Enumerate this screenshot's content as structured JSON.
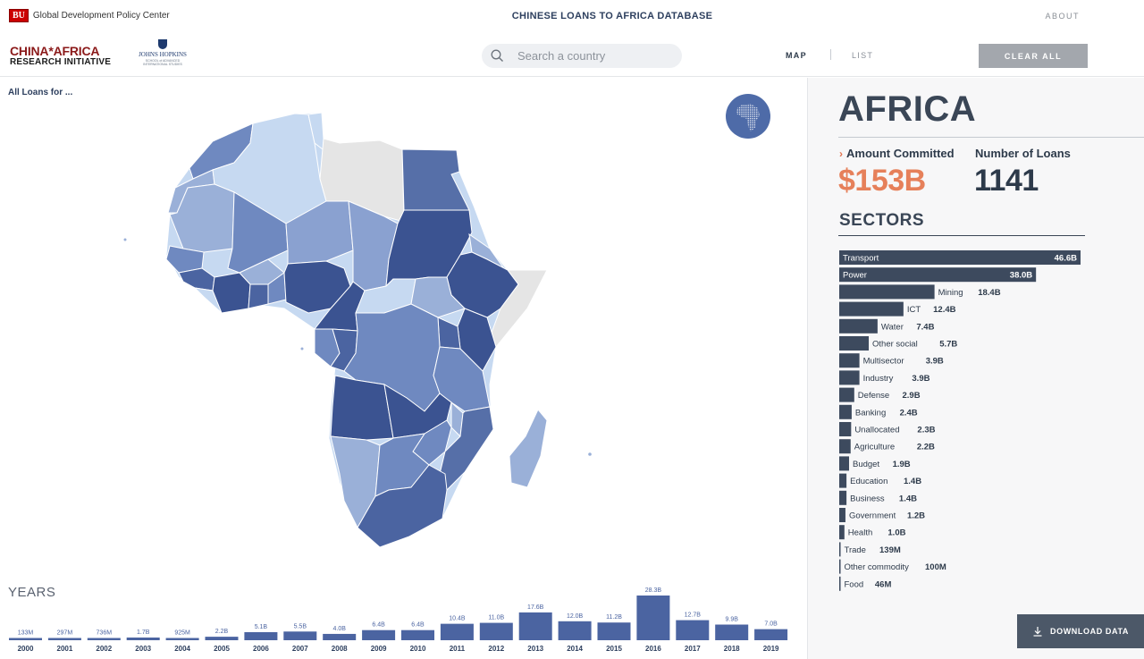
{
  "top_bar": {
    "bu_mark": "BU",
    "bu_name": "Global Development Policy Center",
    "site_title": "CHINESE LOANS TO AFRICA DATABASE",
    "about": "ABOUT"
  },
  "header": {
    "cari_line1": "CHINA*AFRICA",
    "cari_line2": "RESEARCH INITIATIVE",
    "jhu_name": "JOHNS HOPKINS",
    "jhu_sub": "SCHOOL of ADVANCED INTERNATIONAL STUDIES",
    "search_placeholder": "Search a country",
    "tab_map": "MAP",
    "tab_list": "LIST",
    "clear_all": "CLEAR ALL"
  },
  "map": {
    "filter_label": "All Loans for ...",
    "globe_icon": "africa-globe-icon",
    "colors": {
      "light": "#c6d9f1",
      "mid_light": "#9ab0d8",
      "mid": "#6f89c0",
      "dark": "#4b64a1",
      "darkest": "#3b5391",
      "none": "#e5e5e5"
    }
  },
  "years": {
    "title": "YEARS",
    "bar_color": "#4b64a1",
    "items": [
      {
        "year": "2000",
        "label": "133M",
        "value": 0.133
      },
      {
        "year": "2001",
        "label": "297M",
        "value": 0.297
      },
      {
        "year": "2002",
        "label": "736M",
        "value": 0.736
      },
      {
        "year": "2003",
        "label": "1.7B",
        "value": 1.7
      },
      {
        "year": "2004",
        "label": "925M",
        "value": 0.925
      },
      {
        "year": "2005",
        "label": "2.2B",
        "value": 2.2
      },
      {
        "year": "2006",
        "label": "5.1B",
        "value": 5.1
      },
      {
        "year": "2007",
        "label": "5.5B",
        "value": 5.5
      },
      {
        "year": "2008",
        "label": "4.0B",
        "value": 4.0
      },
      {
        "year": "2009",
        "label": "6.4B",
        "value": 6.4
      },
      {
        "year": "2010",
        "label": "6.4B",
        "value": 6.4
      },
      {
        "year": "2011",
        "label": "10.4B",
        "value": 10.4
      },
      {
        "year": "2012",
        "label": "11.0B",
        "value": 11.0
      },
      {
        "year": "2013",
        "label": "17.6B",
        "value": 17.6
      },
      {
        "year": "2014",
        "label": "12.0B",
        "value": 12.0
      },
      {
        "year": "2015",
        "label": "11.2B",
        "value": 11.2
      },
      {
        "year": "2016",
        "label": "28.3B",
        "value": 28.3
      },
      {
        "year": "2017",
        "label": "12.7B",
        "value": 12.7
      },
      {
        "year": "2018",
        "label": "9.9B",
        "value": 9.9
      },
      {
        "year": "2019",
        "label": "7.0B",
        "value": 7.0
      }
    ]
  },
  "summary": {
    "region": "AFRICA",
    "amount_label": "Amount Committed",
    "amount_value": "$153B",
    "loans_label": "Number of Loans",
    "loans_value": "1141",
    "sectors_title": "SECTORS"
  },
  "sectors": {
    "bar_color": "#3d4a5e",
    "items": [
      {
        "name": "Transport",
        "label": "46.6B",
        "value": 46.6
      },
      {
        "name": "Power",
        "label": "38.0B",
        "value": 38.0
      },
      {
        "name": "Mining",
        "label": "18.4B",
        "value": 18.4
      },
      {
        "name": "ICT",
        "label": "12.4B",
        "value": 12.4
      },
      {
        "name": "Water",
        "label": "7.4B",
        "value": 7.4
      },
      {
        "name": "Other social",
        "label": "5.7B",
        "value": 5.7
      },
      {
        "name": "Multisector",
        "label": "3.9B",
        "value": 3.9
      },
      {
        "name": "Industry",
        "label": "3.9B",
        "value": 3.9
      },
      {
        "name": "Defense",
        "label": "2.9B",
        "value": 2.9
      },
      {
        "name": "Banking",
        "label": "2.4B",
        "value": 2.4
      },
      {
        "name": "Unallocated",
        "label": "2.3B",
        "value": 2.3
      },
      {
        "name": "Agriculture",
        "label": "2.2B",
        "value": 2.2
      },
      {
        "name": "Budget",
        "label": "1.9B",
        "value": 1.9
      },
      {
        "name": "Education",
        "label": "1.4B",
        "value": 1.4
      },
      {
        "name": "Business",
        "label": "1.4B",
        "value": 1.4
      },
      {
        "name": "Government",
        "label": "1.2B",
        "value": 1.2
      },
      {
        "name": "Health",
        "label": "1.0B",
        "value": 1.0
      },
      {
        "name": "Trade",
        "label": "139M",
        "value": 0.139
      },
      {
        "name": "Other commodity",
        "label": "100M",
        "value": 0.1
      },
      {
        "name": "Food",
        "label": "46M",
        "value": 0.046
      }
    ]
  },
  "download": {
    "label": "DOWNLOAD DATA",
    "icon": "download-icon"
  }
}
